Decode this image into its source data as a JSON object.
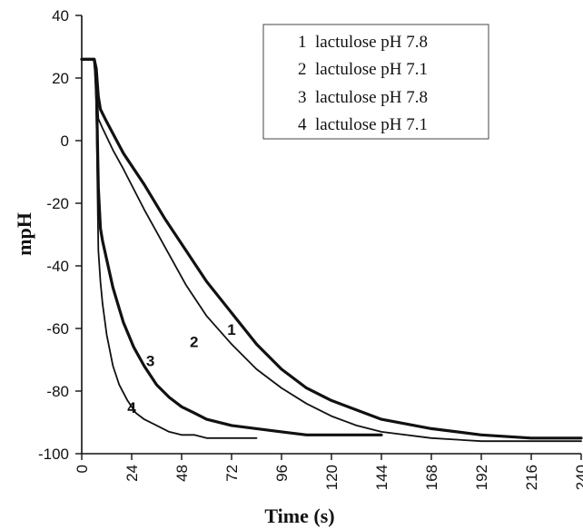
{
  "chart_data": {
    "type": "line",
    "title": "",
    "xlabel": "Time (s)",
    "ylabel": "mpH",
    "xlim": [
      0,
      240
    ],
    "ylim": [
      -100,
      40
    ],
    "x_ticks": [
      0,
      24,
      48,
      72,
      96,
      120,
      144,
      168,
      192,
      216,
      240
    ],
    "y_ticks": [
      40,
      20,
      0,
      -20,
      -40,
      -60,
      -80,
      -100
    ],
    "grid": false,
    "legend_position": "top-right",
    "series": [
      {
        "name": "1  lactulose pH 7.8",
        "curve_label": "1",
        "stroke_width": 3.2,
        "x": [
          0,
          6,
          7,
          8,
          9,
          12,
          20,
          30,
          40,
          50,
          60,
          72,
          84,
          96,
          108,
          120,
          144,
          168,
          192,
          216,
          240
        ],
        "y": [
          26,
          26,
          23,
          14,
          10,
          6,
          -4,
          -14,
          -25,
          -35,
          -45,
          -55,
          -65,
          -73,
          -79,
          -83,
          -89,
          -92,
          -94,
          -95,
          -95
        ]
      },
      {
        "name": "2  lactulose pH 7.1",
        "curve_label": "2",
        "stroke_width": 1.8,
        "x": [
          0,
          6,
          7,
          8,
          10,
          15,
          20,
          30,
          40,
          50,
          60,
          72,
          84,
          96,
          108,
          120,
          132,
          144,
          168,
          192,
          216,
          240
        ],
        "y": [
          26,
          26,
          20,
          7,
          4,
          -3,
          -9,
          -22,
          -34,
          -46,
          -56,
          -65,
          -73,
          -79,
          -84,
          -88,
          -91,
          -93,
          -95,
          -96,
          -96,
          -96
        ]
      },
      {
        "name": "3  lactulose pH 7.8",
        "curve_label": "3",
        "stroke_width": 3.2,
        "x": [
          0,
          6,
          7,
          8,
          9,
          10,
          12,
          15,
          20,
          25,
          30,
          36,
          42,
          48,
          54,
          60,
          72,
          84,
          96,
          108,
          120,
          144
        ],
        "y": [
          26,
          26,
          20,
          -15,
          -28,
          -32,
          -38,
          -47,
          -58,
          -66,
          -72,
          -78,
          -82,
          -85,
          -87,
          -89,
          -91,
          -92,
          -93,
          -94,
          -94,
          -94
        ]
      },
      {
        "name": "4  lactulose pH 7.1",
        "curve_label": "4",
        "stroke_width": 1.8,
        "x": [
          0,
          6,
          7,
          8,
          9,
          10,
          12,
          15,
          18,
          22,
          26,
          30,
          36,
          42,
          48,
          54,
          60,
          72,
          84
        ],
        "y": [
          26,
          26,
          12,
          -35,
          -45,
          -52,
          -62,
          -72,
          -78,
          -83,
          -87,
          -89,
          -91,
          -93,
          -94,
          -94,
          -95,
          -95,
          -95
        ]
      }
    ],
    "label_positions": [
      {
        "series": 0,
        "x": 72,
        "y": -62
      },
      {
        "series": 1,
        "x": 54,
        "y": -66
      },
      {
        "series": 2,
        "x": 33,
        "y": -72
      },
      {
        "series": 3,
        "x": 24,
        "y": -87
      }
    ]
  }
}
